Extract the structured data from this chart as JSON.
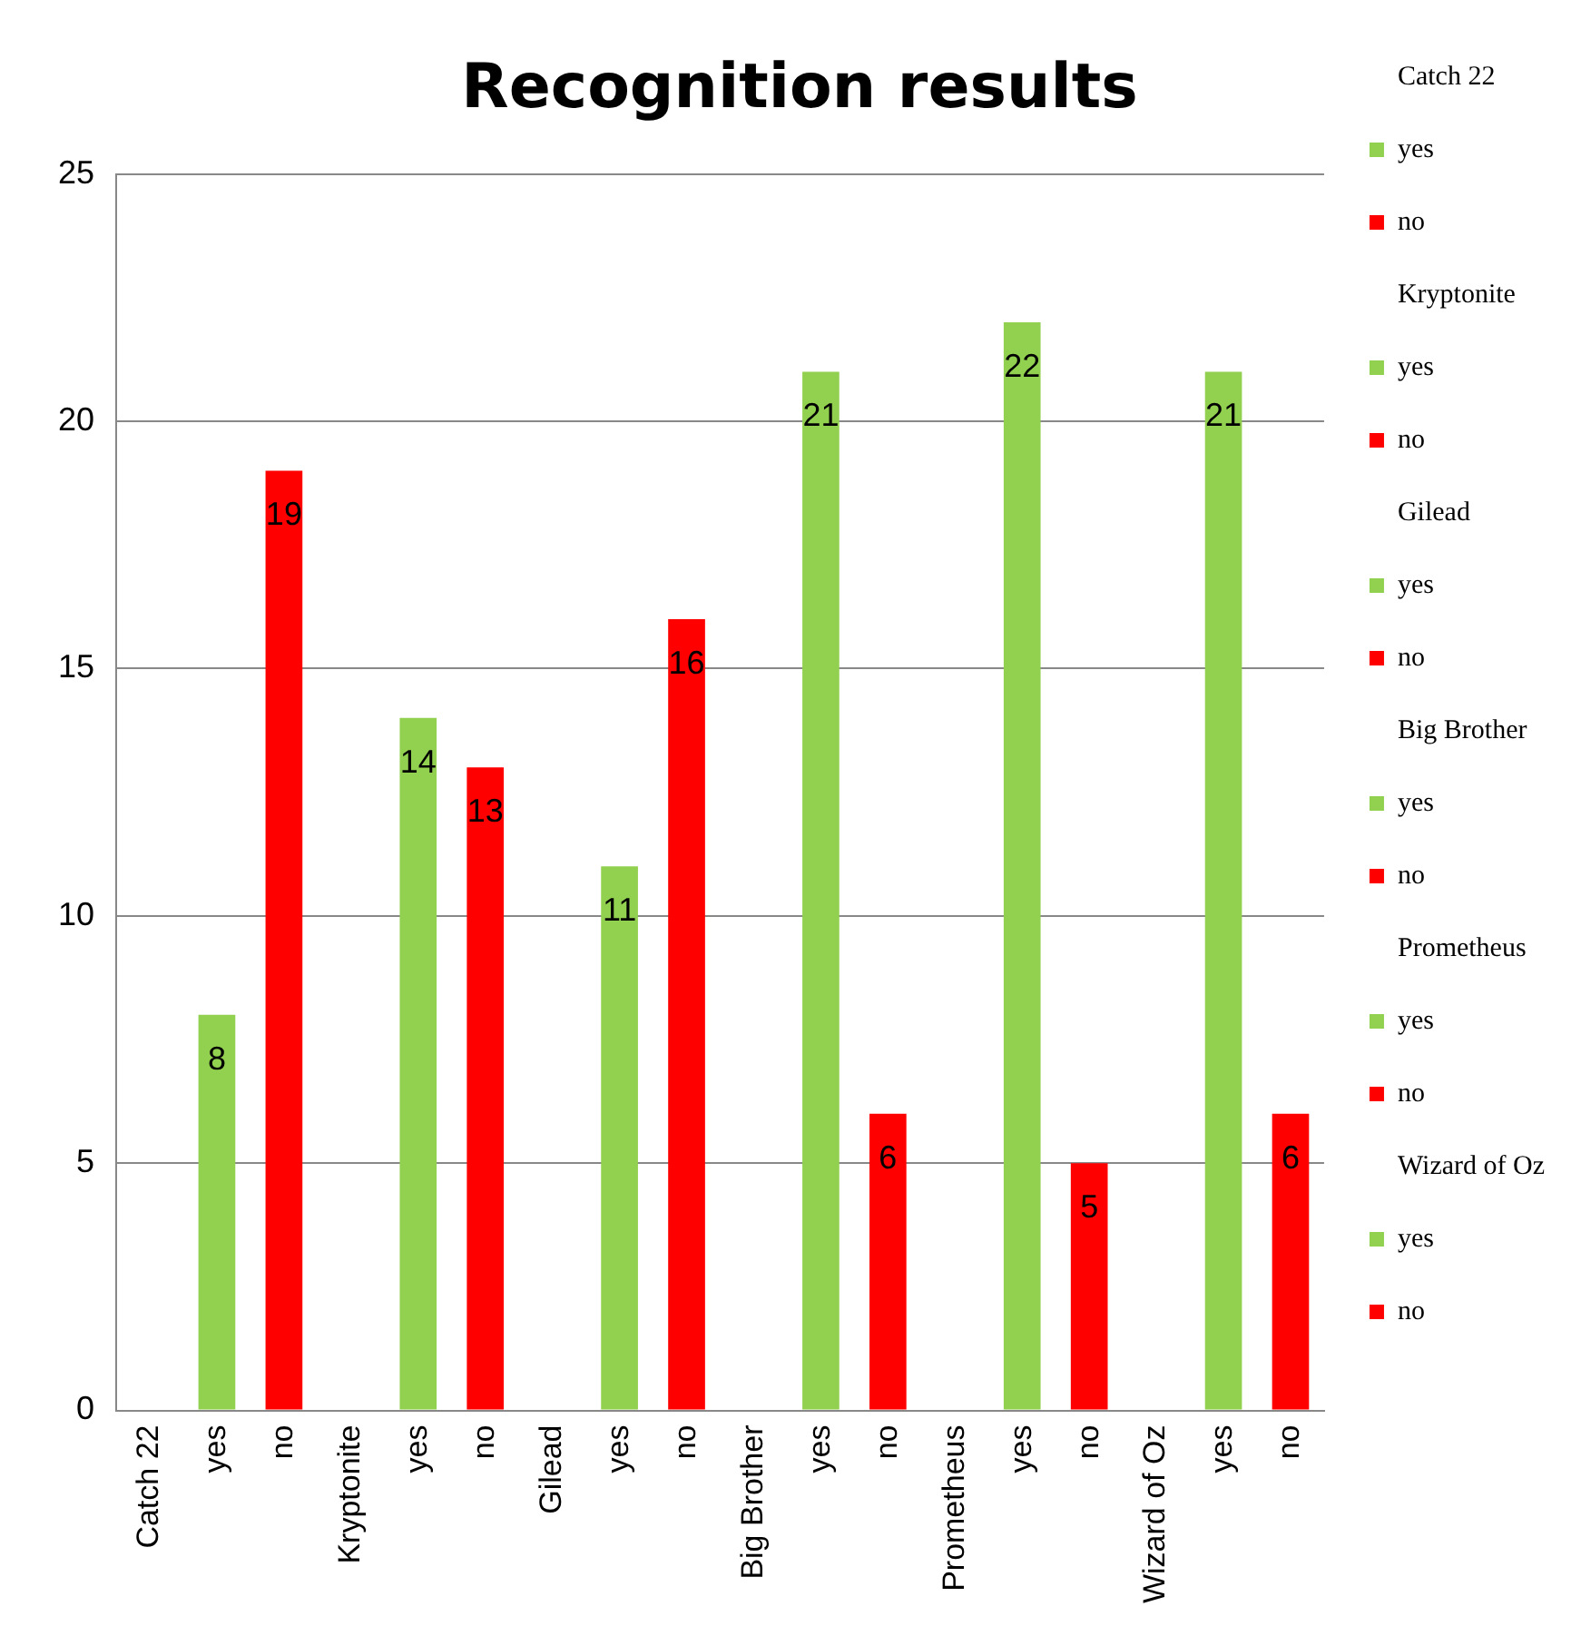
{
  "chart_data": {
    "type": "bar",
    "title": "Recognition results",
    "categories": [
      "Catch 22",
      "yes",
      "no",
      "Kryptonite",
      "yes",
      "no",
      "Gilead",
      "yes",
      "no",
      "Big Brother",
      "yes",
      "no",
      "Prometheus",
      "yes",
      "no",
      "Wizard of Oz",
      "yes",
      "no"
    ],
    "series": [
      {
        "name": "yes",
        "color": "#92d050",
        "values": [
          null,
          8,
          null,
          null,
          null,
          null,
          null,
          null,
          null,
          null,
          null,
          null,
          null,
          null,
          null,
          null,
          null,
          null
        ]
      },
      {
        "name": "no",
        "color": "#ff0000",
        "values": [
          null,
          null,
          19,
          null,
          null,
          null,
          null,
          null,
          null,
          null,
          null,
          null,
          null,
          null,
          null,
          null,
          null,
          null
        ]
      },
      {
        "name": "yes",
        "color": "#92d050",
        "values": [
          null,
          null,
          null,
          null,
          14,
          null,
          null,
          null,
          null,
          null,
          null,
          null,
          null,
          null,
          null,
          null,
          null,
          null
        ]
      },
      {
        "name": "no",
        "color": "#ff0000",
        "values": [
          null,
          null,
          null,
          null,
          null,
          13,
          null,
          null,
          null,
          null,
          null,
          null,
          null,
          null,
          null,
          null,
          null,
          null
        ]
      },
      {
        "name": "yes",
        "color": "#92d050",
        "values": [
          null,
          null,
          null,
          null,
          null,
          null,
          null,
          11,
          null,
          null,
          null,
          null,
          null,
          null,
          null,
          null,
          null,
          null
        ]
      },
      {
        "name": "no",
        "color": "#ff0000",
        "values": [
          null,
          null,
          null,
          null,
          null,
          null,
          null,
          null,
          16,
          null,
          null,
          null,
          null,
          null,
          null,
          null,
          null,
          null
        ]
      },
      {
        "name": "yes",
        "color": "#92d050",
        "values": [
          null,
          null,
          null,
          null,
          null,
          null,
          null,
          null,
          null,
          null,
          21,
          null,
          null,
          null,
          null,
          null,
          null,
          null
        ]
      },
      {
        "name": "no",
        "color": "#ff0000",
        "values": [
          null,
          null,
          null,
          null,
          null,
          null,
          null,
          null,
          null,
          null,
          null,
          6,
          null,
          null,
          null,
          null,
          null,
          null
        ]
      },
      {
        "name": "yes",
        "color": "#92d050",
        "values": [
          null,
          null,
          null,
          null,
          null,
          null,
          null,
          null,
          null,
          null,
          null,
          null,
          null,
          22,
          null,
          null,
          null,
          null
        ]
      },
      {
        "name": "no",
        "color": "#ff0000",
        "values": [
          null,
          null,
          null,
          null,
          null,
          null,
          null,
          null,
          null,
          null,
          null,
          null,
          null,
          null,
          5,
          null,
          null,
          null
        ]
      },
      {
        "name": "yes",
        "color": "#92d050",
        "values": [
          null,
          null,
          null,
          null,
          null,
          null,
          null,
          null,
          null,
          null,
          null,
          null,
          null,
          null,
          null,
          null,
          21,
          null
        ]
      },
      {
        "name": "no",
        "color": "#ff0000",
        "values": [
          null,
          null,
          null,
          null,
          null,
          null,
          null,
          null,
          null,
          null,
          null,
          null,
          null,
          null,
          null,
          null,
          null,
          6
        ]
      }
    ],
    "ylim": [
      0,
      25
    ],
    "yticks": [
      0,
      5,
      10,
      15,
      20,
      25
    ],
    "grid": "y",
    "legend": "right",
    "data_labels": true
  }
}
